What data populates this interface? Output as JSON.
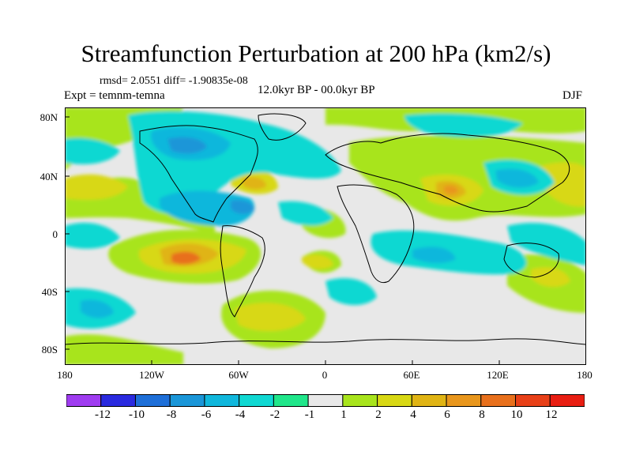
{
  "figure": {
    "title": "Streamfunction Perturbation at 200 hPa (km2/s)",
    "stats": "rmsd= 2.0551  diff= -1.90835e-08",
    "experiment": "Expt = temnm-temna",
    "period": "12.0kyr BP - 00.0kyr BP",
    "season": "DJF"
  },
  "map": {
    "lat_labels": [
      "80N",
      "40N",
      "0",
      "40S",
      "80S"
    ],
    "lon_labels": [
      "180",
      "120W",
      "60W",
      "0",
      "60E",
      "120E",
      "180"
    ]
  },
  "colorbar": {
    "labels": [
      "-12",
      "-10",
      "-8",
      "-6",
      "-4",
      "-2",
      "-1",
      "1",
      "2",
      "4",
      "6",
      "8",
      "10",
      "12"
    ],
    "colors": [
      "#9f3cf0",
      "#2a2adf",
      "#1e6fd8",
      "#1a96d8",
      "#10b7dc",
      "#10d8d2",
      "#20e68a",
      "#e8e8e8",
      "#a8e41c",
      "#d8d814",
      "#e0b414",
      "#e8961c",
      "#e8701c",
      "#e84018",
      "#e81e12"
    ]
  }
}
